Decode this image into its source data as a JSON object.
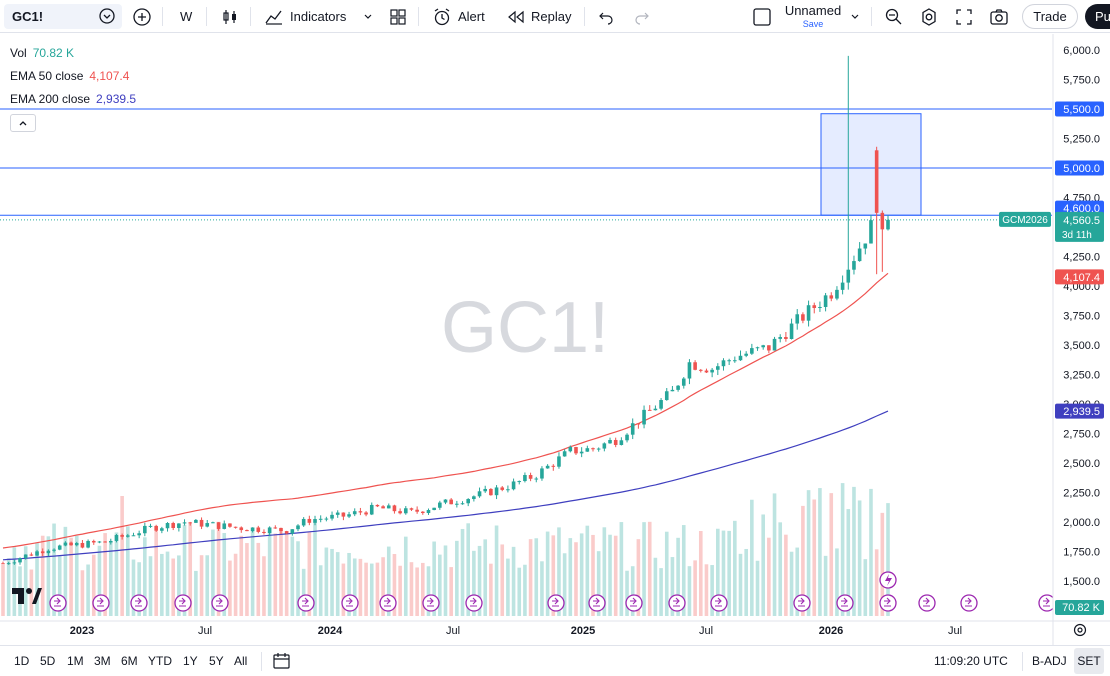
{
  "toolbar": {
    "symbol": "GC1!",
    "interval": "W",
    "indicators_label": "Indicators",
    "alert_label": "Alert",
    "replay_label": "Replay",
    "layout_name": "Unnamed",
    "layout_save": "Save",
    "trade_label": "Trade",
    "publish_label": "Pu"
  },
  "legend": {
    "vol_label": "Vol",
    "vol_value": "70.82 K",
    "ema50_label": "EMA 50 close",
    "ema50_value": "4,107.4",
    "ema200_label": "EMA 200 close",
    "ema200_value": "2,939.5"
  },
  "watermark": "GC1!",
  "price_axis": {
    "ticks": [
      "6,000.0",
      "5,750.0",
      "5,500.0",
      "5,250.0",
      "5,000.0",
      "4,750.0",
      "4,250.0",
      "4,000.0",
      "3,750.0",
      "3,500.0",
      "3,250.0",
      "3,000.0",
      "2,750.0",
      "2,500.0",
      "2,250.0",
      "2,000.0",
      "1,750.0",
      "1,500.0"
    ],
    "labels": {
      "h5500": "5,500.0",
      "h5000": "5,000.0",
      "h4600": "4,600.0",
      "contract": "GCM2026",
      "last_price": "4,560.5",
      "countdown": "3d 11h",
      "ema50": "4,107.4",
      "ema200": "2,939.5",
      "volume": "70.82 K"
    }
  },
  "time_axis": [
    "2023",
    "Jul",
    "2024",
    "Jul",
    "2025",
    "Jul",
    "2026",
    "Jul"
  ],
  "bottombar": {
    "ranges": [
      "1D",
      "5D",
      "1M",
      "3M",
      "6M",
      "YTD",
      "1Y",
      "5Y",
      "All"
    ],
    "time": "11:09:20 UTC",
    "adj": "B-ADJ",
    "session": "SET"
  },
  "colors": {
    "up": "#26a69a",
    "down": "#ef5350",
    "ema50": "#ef5350",
    "ema200": "#3f3fbf",
    "hline": "#2962ff",
    "box": "#2962ff"
  },
  "chart_data": {
    "type": "candlestick",
    "symbol": "GC1!",
    "contract": "GCM2026",
    "interval": "W",
    "ylim": [
      1400,
      6100
    ],
    "last": 4560.5,
    "horizontal_lines": [
      5500,
      5000,
      4600
    ],
    "ema50_last": 4107.4,
    "ema200_last": 2939.5,
    "volume_last": "70.82 K"
  }
}
